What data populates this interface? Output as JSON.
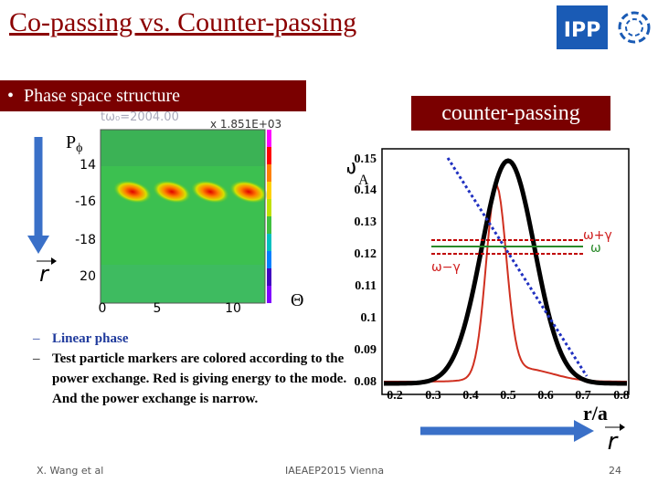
{
  "header": {
    "title": "Co-passing vs. Counter-passing",
    "logo": "IPP"
  },
  "section": {
    "bullet": "Phase space structure",
    "tag": "counter-passing"
  },
  "left_plot": {
    "time_label": "tω₀=2004.00",
    "scale_label": "x 1.851E+03",
    "y_label": "P",
    "y_label_sub": "ϕ",
    "y_ticks": [
      "14",
      "-16",
      "-18",
      "20"
    ],
    "x_ticks": [
      "0",
      "5",
      "10"
    ],
    "x_label": "Θ",
    "vector_label": "r"
  },
  "right_plot": {
    "y_label": "ω/ω",
    "y_label_sub": "A",
    "y_ticks": [
      "0.15",
      "0.14",
      "0.13",
      "0.12",
      "0.11",
      "0.1",
      "0.09",
      "0.08"
    ],
    "x_ticks": [
      "0.2",
      "0.3",
      "0.4",
      "0.5",
      "0.6",
      "0.7",
      "0.8"
    ],
    "x_label": "r/a",
    "legend": [
      "ω+γ",
      "ω",
      "ω−γ"
    ],
    "vector_label": "r"
  },
  "list": {
    "items": [
      "Linear phase",
      "Test particle markers are colored according to the power exchange. Red is giving energy to the mode. And the power exchange is narrow."
    ]
  },
  "footer": {
    "author": "X. Wang et al",
    "event": "IAEAEP2015 Vienna",
    "page": "24"
  }
}
